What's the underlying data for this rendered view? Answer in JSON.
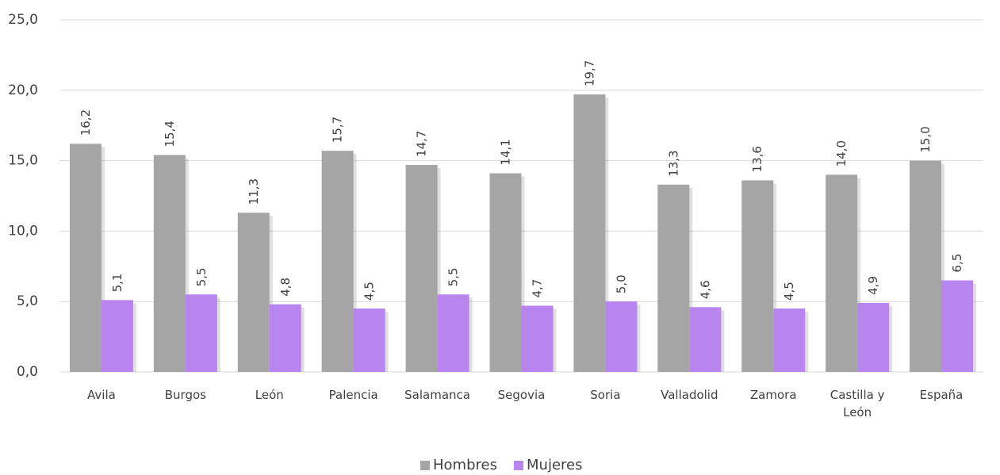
{
  "chart_data": {
    "type": "bar",
    "categories": [
      "Avila",
      "Burgos",
      "León",
      "Palencia",
      "Salamanca",
      "Segovia",
      "Soria",
      "Valladolid",
      "Zamora",
      "Castilla y León",
      "España"
    ],
    "series": [
      {
        "name": "Hombres",
        "color": "#a5a5a5",
        "values": [
          16.2,
          15.4,
          11.3,
          15.7,
          14.7,
          14.1,
          19.7,
          13.3,
          13.6,
          14.0,
          15.0
        ],
        "value_labels": [
          "16,2",
          "15,4",
          "11,3",
          "15,7",
          "14,7",
          "14,1",
          "19,7",
          "13,3",
          "13,6",
          "14,0",
          "15,0"
        ]
      },
      {
        "name": "Mujeres",
        "color": "#b784f0",
        "values": [
          5.1,
          5.5,
          4.8,
          4.5,
          5.5,
          4.7,
          5.0,
          4.6,
          4.5,
          4.9,
          6.5
        ],
        "value_labels": [
          "5,1",
          "5,5",
          "4,8",
          "4,5",
          "5,5",
          "4,7",
          "5,0",
          "4,6",
          "4,5",
          "4,9",
          "6,5"
        ]
      }
    ],
    "ylim": [
      0,
      25
    ],
    "yticks": [
      {
        "value": 0,
        "label": "0,0"
      },
      {
        "value": 5,
        "label": "5,0"
      },
      {
        "value": 10,
        "label": "10,0"
      },
      {
        "value": 15,
        "label": "15,0"
      },
      {
        "value": 20,
        "label": "20,0"
      },
      {
        "value": 25,
        "label": "25,0"
      }
    ],
    "grid": true,
    "legend": "bottom"
  }
}
